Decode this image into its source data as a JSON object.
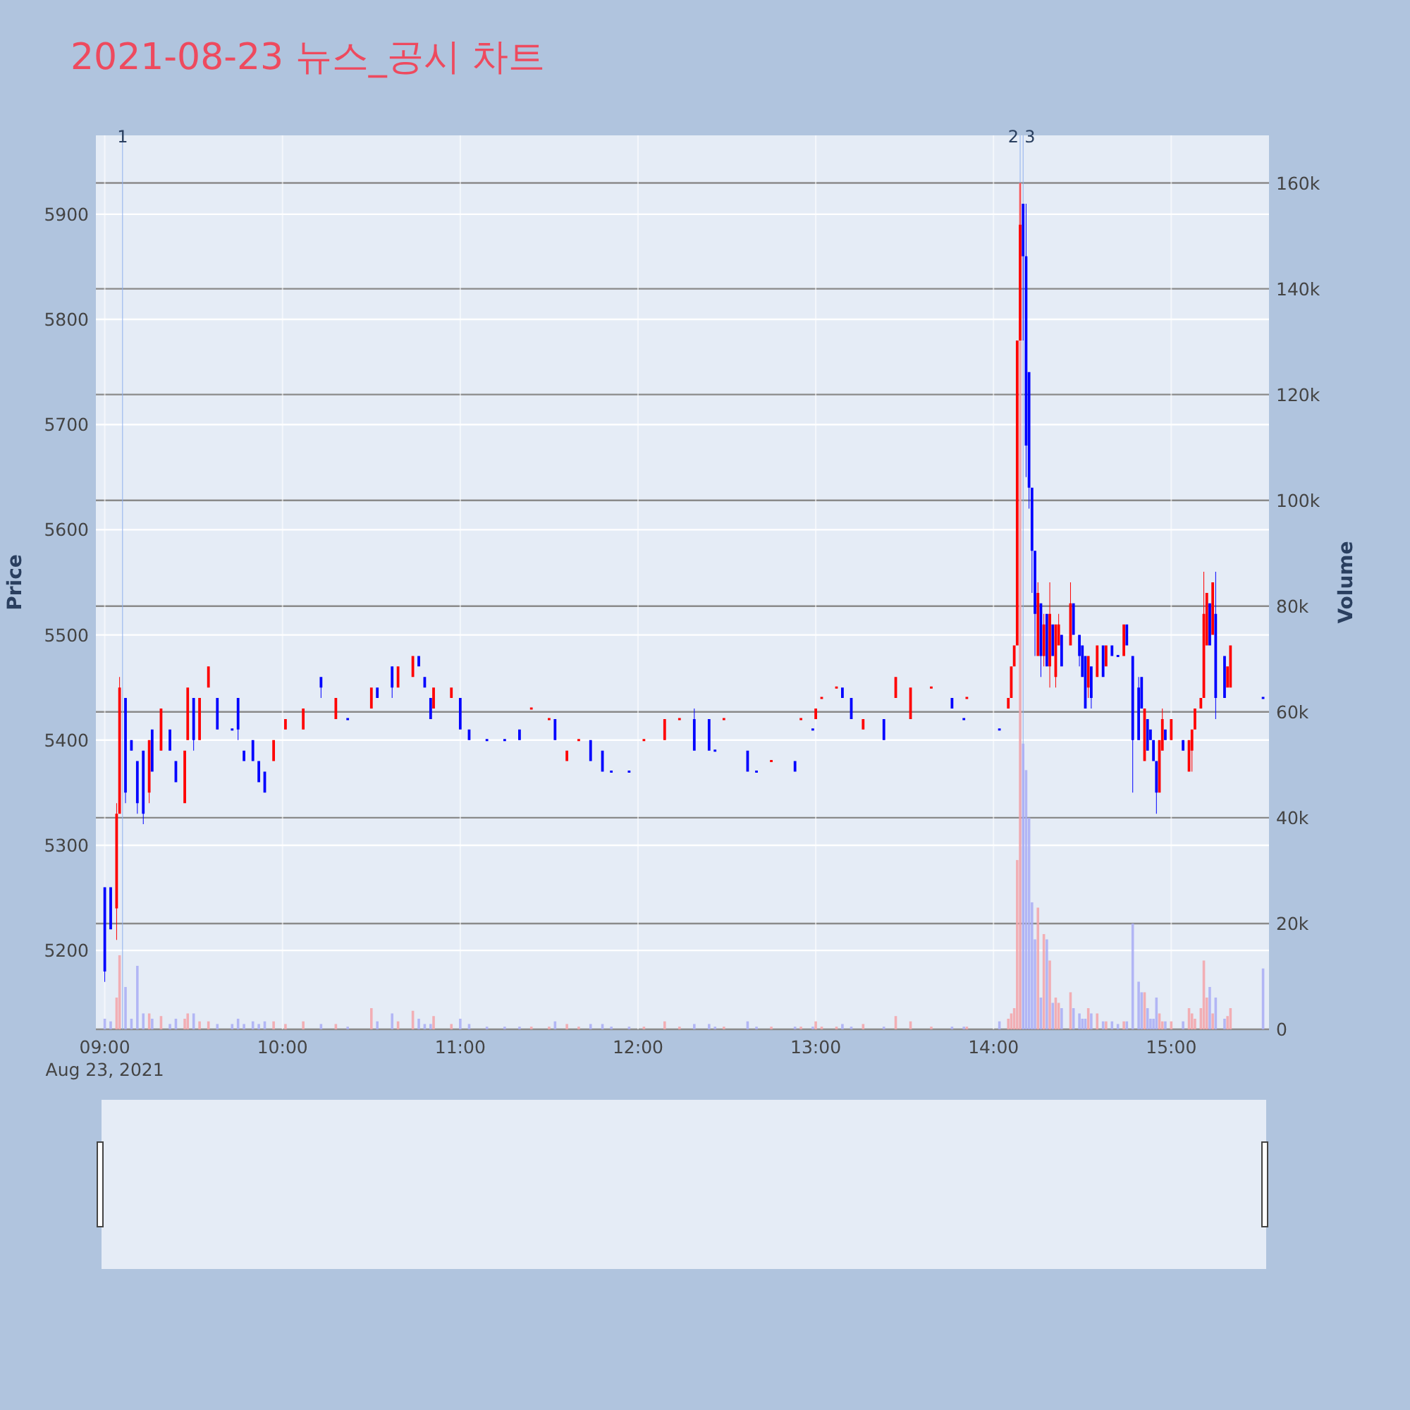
{
  "chart_data": {
    "type": "candlestick",
    "title": "2021-08-23 뉴스_공시 차트",
    "ylabel": "Price",
    "y2label": "Volume",
    "xlim": [
      "2021-08-23T08:57",
      "2021-08-23T15:33"
    ],
    "xticks": [
      {
        "value": "2021-08-23T09:00",
        "label": "09:00"
      },
      {
        "value": "2021-08-23T10:00",
        "label": "10:00"
      },
      {
        "value": "2021-08-23T11:00",
        "label": "11:00"
      },
      {
        "value": "2021-08-23T12:00",
        "label": "12:00"
      },
      {
        "value": "2021-08-23T13:00",
        "label": "13:00"
      },
      {
        "value": "2021-08-23T14:00",
        "label": "14:00"
      },
      {
        "value": "2021-08-23T15:00",
        "label": "15:00"
      }
    ],
    "ylim": [
      5125,
      5975
    ],
    "yticks": [
      5200,
      5300,
      5400,
      5500,
      5600,
      5700,
      5800,
      5900
    ],
    "y2lim": [
      0,
      169000
    ],
    "y2ticks": [
      0,
      {
        "value": 20000,
        "label": "20k"
      },
      {
        "value": 40000,
        "label": "40k"
      },
      {
        "value": 60000,
        "label": "60k"
      },
      {
        "value": 80000,
        "label": "80k"
      },
      {
        "value": 100000,
        "label": "100k"
      },
      {
        "value": 120000,
        "label": "120k"
      },
      {
        "value": 140000,
        "label": "140k"
      },
      {
        "value": 160000,
        "label": "160k"
      }
    ],
    "grid": true,
    "annotations": [
      "Aug 23, 2021"
    ],
    "ref_lines": [
      {
        "axis": "x",
        "value": "2021-08-23T09:06",
        "label": "1",
        "color": "#8fb0ee"
      },
      {
        "axis": "x",
        "value": "2021-08-23T14:09",
        "label": "2",
        "color": "#8fb0ee"
      },
      {
        "axis": "x",
        "value": "2021-08-23T14:10",
        "label": "3",
        "color": "#8fb0ee"
      }
    ],
    "series": [
      {
        "type": "bar",
        "axis": "y2",
        "color": "#f4a3a8",
        "x": [
          "2021-08-23T09:04",
          "2021-08-23T09:05",
          "2021-08-23T09:15",
          "2021-08-23T09:19",
          "2021-08-23T09:27",
          "2021-08-23T09:28",
          "2021-08-23T09:32",
          "2021-08-23T09:35",
          "2021-08-23T09:57",
          "2021-08-23T10:01",
          "2021-08-23T10:07",
          "2021-08-23T10:18",
          "2021-08-23T10:30",
          "2021-08-23T10:39",
          "2021-08-23T10:44",
          "2021-08-23T10:51",
          "2021-08-23T10:57",
          "2021-08-23T11:24",
          "2021-08-23T11:30",
          "2021-08-23T11:36",
          "2021-08-23T11:40",
          "2021-08-23T12:02",
          "2021-08-23T12:09",
          "2021-08-23T12:14",
          "2021-08-23T12:29",
          "2021-08-23T12:45",
          "2021-08-23T12:55",
          "2021-08-23T13:00",
          "2021-08-23T13:02",
          "2021-08-23T13:07",
          "2021-08-23T13:16",
          "2021-08-23T13:27",
          "2021-08-23T13:32",
          "2021-08-23T13:39",
          "2021-08-23T13:51",
          "2021-08-23T14:05",
          "2021-08-23T14:06",
          "2021-08-23T14:07",
          "2021-08-23T14:08",
          "2021-08-23T14:09",
          "2021-08-23T14:15",
          "2021-08-23T14:17",
          "2021-08-23T14:19",
          "2021-08-23T14:21",
          "2021-08-23T14:22",
          "2021-08-23T14:26",
          "2021-08-23T14:32",
          "2021-08-23T14:35",
          "2021-08-23T14:38",
          "2021-08-23T14:44",
          "2021-08-23T14:51",
          "2021-08-23T14:56",
          "2021-08-23T14:57",
          "2021-08-23T15:00",
          "2021-08-23T15:06",
          "2021-08-23T15:07",
          "2021-08-23T15:08",
          "2021-08-23T15:10",
          "2021-08-23T15:11",
          "2021-08-23T15:12",
          "2021-08-23T15:14",
          "2021-08-23T15:19",
          "2021-08-23T15:20"
        ],
        "values": [
          6000,
          14000,
          3000,
          2500,
          2000,
          3000,
          1500,
          1500,
          1500,
          1000,
          1500,
          1000,
          4000,
          1500,
          3500,
          2500,
          1000,
          500,
          500,
          1000,
          500,
          500,
          1500,
          500,
          500,
          500,
          500,
          1500,
          500,
          500,
          1000,
          2500,
          1500,
          500,
          500,
          2000,
          3000,
          4000,
          32000,
          160000,
          23000,
          18000,
          13000,
          6000,
          5000,
          7000,
          4000,
          3000,
          1500,
          1500,
          7000,
          3000,
          1500,
          1500,
          4000,
          3000,
          2000,
          4000,
          13000,
          6000,
          3000,
          2500,
          4000
        ]
      },
      {
        "type": "bar",
        "axis": "y2",
        "color": "#a9adf4",
        "x": [
          "2021-08-23T09:00",
          "2021-08-23T09:02",
          "2021-08-23T09:07",
          "2021-08-23T09:09",
          "2021-08-23T09:11",
          "2021-08-23T09:13",
          "2021-08-23T09:16",
          "2021-08-23T09:22",
          "2021-08-23T09:24",
          "2021-08-23T09:30",
          "2021-08-23T09:38",
          "2021-08-23T09:43",
          "2021-08-23T09:45",
          "2021-08-23T09:47",
          "2021-08-23T09:50",
          "2021-08-23T09:52",
          "2021-08-23T09:54",
          "2021-08-23T10:13",
          "2021-08-23T10:22",
          "2021-08-23T10:32",
          "2021-08-23T10:37",
          "2021-08-23T10:46",
          "2021-08-23T10:48",
          "2021-08-23T10:50",
          "2021-08-23T11:00",
          "2021-08-23T11:03",
          "2021-08-23T11:09",
          "2021-08-23T11:15",
          "2021-08-23T11:20",
          "2021-08-23T11:32",
          "2021-08-23T11:44",
          "2021-08-23T11:48",
          "2021-08-23T11:51",
          "2021-08-23T11:57",
          "2021-08-23T12:19",
          "2021-08-23T12:24",
          "2021-08-23T12:26",
          "2021-08-23T12:37",
          "2021-08-23T12:40",
          "2021-08-23T12:53",
          "2021-08-23T12:59",
          "2021-08-23T13:09",
          "2021-08-23T13:12",
          "2021-08-23T13:23",
          "2021-08-23T13:46",
          "2021-08-23T13:50",
          "2021-08-23T14:02",
          "2021-08-23T14:10",
          "2021-08-23T14:11",
          "2021-08-23T14:12",
          "2021-08-23T14:13",
          "2021-08-23T14:14",
          "2021-08-23T14:16",
          "2021-08-23T14:18",
          "2021-08-23T14:20",
          "2021-08-23T14:23",
          "2021-08-23T14:27",
          "2021-08-23T14:29",
          "2021-08-23T14:30",
          "2021-08-23T14:31",
          "2021-08-23T14:33",
          "2021-08-23T14:37",
          "2021-08-23T14:40",
          "2021-08-23T14:42",
          "2021-08-23T14:45",
          "2021-08-23T14:47",
          "2021-08-23T14:49",
          "2021-08-23T14:50",
          "2021-08-23T14:52",
          "2021-08-23T14:53",
          "2021-08-23T14:54",
          "2021-08-23T14:55",
          "2021-08-23T14:58",
          "2021-08-23T15:04",
          "2021-08-23T15:13",
          "2021-08-23T15:15",
          "2021-08-23T15:18",
          "2021-08-23T15:31"
        ],
        "values": [
          2000,
          1500,
          8000,
          2000,
          12000,
          3000,
          2000,
          1000,
          2000,
          3000,
          1000,
          1000,
          2000,
          1000,
          1500,
          1000,
          1500,
          1000,
          500,
          1500,
          3000,
          2000,
          1000,
          1000,
          2000,
          1000,
          500,
          500,
          500,
          1500,
          1000,
          1000,
          500,
          500,
          1000,
          1000,
          500,
          1500,
          500,
          500,
          500,
          1000,
          500,
          500,
          500,
          500,
          1500,
          54000,
          49000,
          40000,
          24000,
          17000,
          6000,
          17000,
          5000,
          4000,
          4000,
          3000,
          2000,
          2000,
          3000,
          1500,
          1500,
          1000,
          1500,
          20000,
          9000,
          7000,
          4000,
          2000,
          2000,
          6000,
          1500,
          1500,
          8000,
          6000,
          2000,
          11500
        ]
      },
      {
        "type": "candlestick",
        "color": "#ff0000",
        "x": [
          "2021-08-23T09:04",
          "2021-08-23T09:05",
          "2021-08-23T09:15",
          "2021-08-23T09:19",
          "2021-08-23T09:27",
          "2021-08-23T09:28",
          "2021-08-23T09:32",
          "2021-08-23T09:35",
          "2021-08-23T09:57",
          "2021-08-23T10:01",
          "2021-08-23T10:07",
          "2021-08-23T10:18",
          "2021-08-23T10:30",
          "2021-08-23T10:39",
          "2021-08-23T10:44",
          "2021-08-23T10:51",
          "2021-08-23T10:57",
          "2021-08-23T11:24",
          "2021-08-23T11:30",
          "2021-08-23T11:36",
          "2021-08-23T11:40",
          "2021-08-23T12:02",
          "2021-08-23T12:09",
          "2021-08-23T12:14",
          "2021-08-23T12:29",
          "2021-08-23T12:45",
          "2021-08-23T12:55",
          "2021-08-23T13:00",
          "2021-08-23T13:02",
          "2021-08-23T13:07",
          "2021-08-23T13:16",
          "2021-08-23T13:27",
          "2021-08-23T13:32",
          "2021-08-23T13:39",
          "2021-08-23T13:51",
          "2021-08-23T14:05",
          "2021-08-23T14:06",
          "2021-08-23T14:07",
          "2021-08-23T14:08",
          "2021-08-23T14:09",
          "2021-08-23T14:15",
          "2021-08-23T14:17",
          "2021-08-23T14:19",
          "2021-08-23T14:21",
          "2021-08-23T14:22",
          "2021-08-23T14:26",
          "2021-08-23T14:32",
          "2021-08-23T14:35",
          "2021-08-23T14:38",
          "2021-08-23T14:44",
          "2021-08-23T14:51",
          "2021-08-23T14:56",
          "2021-08-23T14:57",
          "2021-08-23T15:00",
          "2021-08-23T15:06",
          "2021-08-23T15:07",
          "2021-08-23T15:08",
          "2021-08-23T15:10",
          "2021-08-23T15:11",
          "2021-08-23T15:12",
          "2021-08-23T15:14",
          "2021-08-23T15:19",
          "2021-08-23T15:20"
        ],
        "ohlc": [
          [
            5240,
            5340,
            5210,
            5330
          ],
          [
            5330,
            5460,
            5330,
            5450
          ],
          [
            5350,
            5400,
            5340,
            5400
          ],
          [
            5390,
            5430,
            5390,
            5430
          ],
          [
            5340,
            5390,
            5340,
            5390
          ],
          [
            5400,
            5450,
            5400,
            5450
          ],
          [
            5400,
            5440,
            5400,
            5440
          ],
          [
            5450,
            5470,
            5450,
            5470
          ],
          [
            5380,
            5400,
            5380,
            5400
          ],
          [
            5410,
            5420,
            5410,
            5420
          ],
          [
            5410,
            5430,
            5410,
            5430
          ],
          [
            5420,
            5440,
            5420,
            5440
          ],
          [
            5430,
            5450,
            5430,
            5450
          ],
          [
            5450,
            5470,
            5450,
            5470
          ],
          [
            5460,
            5480,
            5460,
            5480
          ],
          [
            5430,
            5450,
            5430,
            5450
          ],
          [
            5440,
            5450,
            5440,
            5450
          ],
          [
            5430,
            5430,
            5430,
            5430
          ],
          [
            5420,
            5420,
            5420,
            5420
          ],
          [
            5380,
            5390,
            5380,
            5390
          ],
          [
            5400,
            5400,
            5400,
            5400
          ],
          [
            5400,
            5400,
            5400,
            5400
          ],
          [
            5400,
            5420,
            5400,
            5420
          ],
          [
            5420,
            5420,
            5420,
            5420
          ],
          [
            5420,
            5420,
            5420,
            5420
          ],
          [
            5380,
            5380,
            5380,
            5380
          ],
          [
            5420,
            5420,
            5420,
            5420
          ],
          [
            5420,
            5430,
            5420,
            5430
          ],
          [
            5440,
            5440,
            5440,
            5440
          ],
          [
            5450,
            5450,
            5450,
            5450
          ],
          [
            5410,
            5420,
            5410,
            5420
          ],
          [
            5440,
            5460,
            5440,
            5460
          ],
          [
            5420,
            5450,
            5420,
            5450
          ],
          [
            5450,
            5450,
            5450,
            5450
          ],
          [
            5440,
            5440,
            5440,
            5440
          ],
          [
            5430,
            5440,
            5430,
            5440
          ],
          [
            5440,
            5470,
            5440,
            5470
          ],
          [
            5470,
            5490,
            5470,
            5490
          ],
          [
            5490,
            5780,
            5490,
            5780
          ],
          [
            5780,
            5930,
            5780,
            5890
          ],
          [
            5480,
            5550,
            5480,
            5540
          ],
          [
            5480,
            5520,
            5470,
            5510
          ],
          [
            5470,
            5550,
            5450,
            5520
          ],
          [
            5460,
            5510,
            5450,
            5510
          ],
          [
            5490,
            5520,
            5490,
            5510
          ],
          [
            5490,
            5550,
            5490,
            5530
          ],
          [
            5450,
            5480,
            5440,
            5480
          ],
          [
            5460,
            5490,
            5460,
            5490
          ],
          [
            5470,
            5490,
            5470,
            5490
          ],
          [
            5480,
            5510,
            5480,
            5510
          ],
          [
            5380,
            5430,
            5380,
            5430
          ],
          [
            5350,
            5400,
            5350,
            5400
          ],
          [
            5390,
            5430,
            5390,
            5420
          ],
          [
            5400,
            5420,
            5400,
            5420
          ],
          [
            5370,
            5400,
            5370,
            5400
          ],
          [
            5390,
            5410,
            5370,
            5410
          ],
          [
            5410,
            5430,
            5410,
            5430
          ],
          [
            5430,
            5440,
            5430,
            5440
          ],
          [
            5440,
            5560,
            5440,
            5520
          ],
          [
            5490,
            5540,
            5490,
            5540
          ],
          [
            5500,
            5550,
            5500,
            5550
          ],
          [
            5450,
            5470,
            5450,
            5470
          ],
          [
            5450,
            5490,
            5450,
            5490
          ]
        ]
      },
      {
        "type": "candlestick",
        "color": "#0000ff",
        "x": [
          "2021-08-23T09:00",
          "2021-08-23T09:02",
          "2021-08-23T09:07",
          "2021-08-23T09:09",
          "2021-08-23T09:11",
          "2021-08-23T09:13",
          "2021-08-23T09:16",
          "2021-08-23T09:22",
          "2021-08-23T09:24",
          "2021-08-23T09:30",
          "2021-08-23T09:38",
          "2021-08-23T09:43",
          "2021-08-23T09:45",
          "2021-08-23T09:47",
          "2021-08-23T09:50",
          "2021-08-23T09:52",
          "2021-08-23T09:54",
          "2021-08-23T10:13",
          "2021-08-23T10:22",
          "2021-08-23T10:32",
          "2021-08-23T10:37",
          "2021-08-23T10:46",
          "2021-08-23T10:48",
          "2021-08-23T10:50",
          "2021-08-23T11:00",
          "2021-08-23T11:03",
          "2021-08-23T11:09",
          "2021-08-23T11:15",
          "2021-08-23T11:20",
          "2021-08-23T11:32",
          "2021-08-23T11:44",
          "2021-08-23T11:48",
          "2021-08-23T11:51",
          "2021-08-23T11:57",
          "2021-08-23T12:19",
          "2021-08-23T12:24",
          "2021-08-23T12:26",
          "2021-08-23T12:37",
          "2021-08-23T12:40",
          "2021-08-23T12:53",
          "2021-08-23T12:59",
          "2021-08-23T13:09",
          "2021-08-23T13:12",
          "2021-08-23T13:23",
          "2021-08-23T13:46",
          "2021-08-23T13:50",
          "2021-08-23T14:02",
          "2021-08-23T14:10",
          "2021-08-23T14:11",
          "2021-08-23T14:12",
          "2021-08-23T14:13",
          "2021-08-23T14:14",
          "2021-08-23T14:16",
          "2021-08-23T14:18",
          "2021-08-23T14:20",
          "2021-08-23T14:23",
          "2021-08-23T14:27",
          "2021-08-23T14:29",
          "2021-08-23T14:30",
          "2021-08-23T14:31",
          "2021-08-23T14:33",
          "2021-08-23T14:37",
          "2021-08-23T14:40",
          "2021-08-23T14:42",
          "2021-08-23T14:45",
          "2021-08-23T14:47",
          "2021-08-23T14:49",
          "2021-08-23T14:50",
          "2021-08-23T14:52",
          "2021-08-23T14:53",
          "2021-08-23T14:54",
          "2021-08-23T14:55",
          "2021-08-23T14:58",
          "2021-08-23T15:04",
          "2021-08-23T15:13",
          "2021-08-23T15:15",
          "2021-08-23T15:18",
          "2021-08-23T15:31"
        ],
        "ohlc": [
          [
            5260,
            5260,
            5170,
            5180
          ],
          [
            5260,
            5260,
            5220,
            5220
          ],
          [
            5440,
            5440,
            5340,
            5350
          ],
          [
            5400,
            5400,
            5390,
            5390
          ],
          [
            5380,
            5380,
            5330,
            5340
          ],
          [
            5390,
            5390,
            5320,
            5330
          ],
          [
            5410,
            5410,
            5370,
            5370
          ],
          [
            5410,
            5410,
            5390,
            5390
          ],
          [
            5380,
            5380,
            5360,
            5360
          ],
          [
            5440,
            5440,
            5390,
            5400
          ],
          [
            5440,
            5440,
            5410,
            5410
          ],
          [
            5410,
            5410,
            5410,
            5410
          ],
          [
            5440,
            5440,
            5400,
            5410
          ],
          [
            5390,
            5390,
            5380,
            5380
          ],
          [
            5400,
            5400,
            5380,
            5380
          ],
          [
            5380,
            5380,
            5360,
            5360
          ],
          [
            5370,
            5370,
            5350,
            5350
          ],
          [
            5460,
            5460,
            5440,
            5450
          ],
          [
            5420,
            5420,
            5420,
            5420
          ],
          [
            5450,
            5450,
            5440,
            5440
          ],
          [
            5470,
            5470,
            5440,
            5450
          ],
          [
            5480,
            5480,
            5470,
            5470
          ],
          [
            5460,
            5460,
            5450,
            5450
          ],
          [
            5440,
            5440,
            5420,
            5420
          ],
          [
            5440,
            5440,
            5410,
            5410
          ],
          [
            5410,
            5410,
            5400,
            5400
          ],
          [
            5400,
            5400,
            5400,
            5400
          ],
          [
            5400,
            5400,
            5400,
            5400
          ],
          [
            5410,
            5410,
            5400,
            5400
          ],
          [
            5420,
            5420,
            5400,
            5400
          ],
          [
            5400,
            5400,
            5380,
            5380
          ],
          [
            5390,
            5390,
            5370,
            5370
          ],
          [
            5370,
            5370,
            5370,
            5370
          ],
          [
            5370,
            5370,
            5370,
            5370
          ],
          [
            5420,
            5430,
            5390,
            5390
          ],
          [
            5420,
            5420,
            5390,
            5390
          ],
          [
            5390,
            5390,
            5390,
            5390
          ],
          [
            5390,
            5390,
            5370,
            5370
          ],
          [
            5370,
            5370,
            5370,
            5370
          ],
          [
            5380,
            5380,
            5370,
            5370
          ],
          [
            5410,
            5410,
            5410,
            5410
          ],
          [
            5450,
            5450,
            5440,
            5440
          ],
          [
            5440,
            5440,
            5420,
            5420
          ],
          [
            5420,
            5420,
            5400,
            5400
          ],
          [
            5440,
            5440,
            5430,
            5430
          ],
          [
            5420,
            5420,
            5420,
            5420
          ],
          [
            5410,
            5410,
            5410,
            5410
          ],
          [
            5910,
            5910,
            5780,
            5860
          ],
          [
            5860,
            5910,
            5650,
            5680
          ],
          [
            5750,
            5750,
            5620,
            5640
          ],
          [
            5640,
            5640,
            5540,
            5580
          ],
          [
            5580,
            5580,
            5480,
            5520
          ],
          [
            5530,
            5530,
            5460,
            5480
          ],
          [
            5520,
            5520,
            5470,
            5470
          ],
          [
            5510,
            5510,
            5480,
            5480
          ],
          [
            5500,
            5500,
            5470,
            5470
          ],
          [
            5530,
            5530,
            5500,
            5500
          ],
          [
            5500,
            5500,
            5470,
            5480
          ],
          [
            5490,
            5490,
            5460,
            5460
          ],
          [
            5480,
            5480,
            5430,
            5430
          ],
          [
            5470,
            5470,
            5430,
            5440
          ],
          [
            5490,
            5490,
            5460,
            5460
          ],
          [
            5490,
            5490,
            5480,
            5480
          ],
          [
            5480,
            5480,
            5480,
            5480
          ],
          [
            5510,
            5510,
            5490,
            5490
          ],
          [
            5480,
            5480,
            5350,
            5400
          ],
          [
            5450,
            5460,
            5400,
            5400
          ],
          [
            5460,
            5460,
            5430,
            5430
          ],
          [
            5420,
            5420,
            5390,
            5390
          ],
          [
            5410,
            5410,
            5400,
            5400
          ],
          [
            5400,
            5400,
            5380,
            5380
          ],
          [
            5380,
            5380,
            5330,
            5350
          ],
          [
            5410,
            5410,
            5400,
            5400
          ],
          [
            5400,
            5400,
            5390,
            5390
          ],
          [
            5530,
            5530,
            5490,
            5490
          ],
          [
            5520,
            5560,
            5420,
            5440
          ],
          [
            5480,
            5480,
            5440,
            5440
          ],
          [
            5440,
            5440,
            5440,
            5440
          ]
        ]
      }
    ]
  }
}
